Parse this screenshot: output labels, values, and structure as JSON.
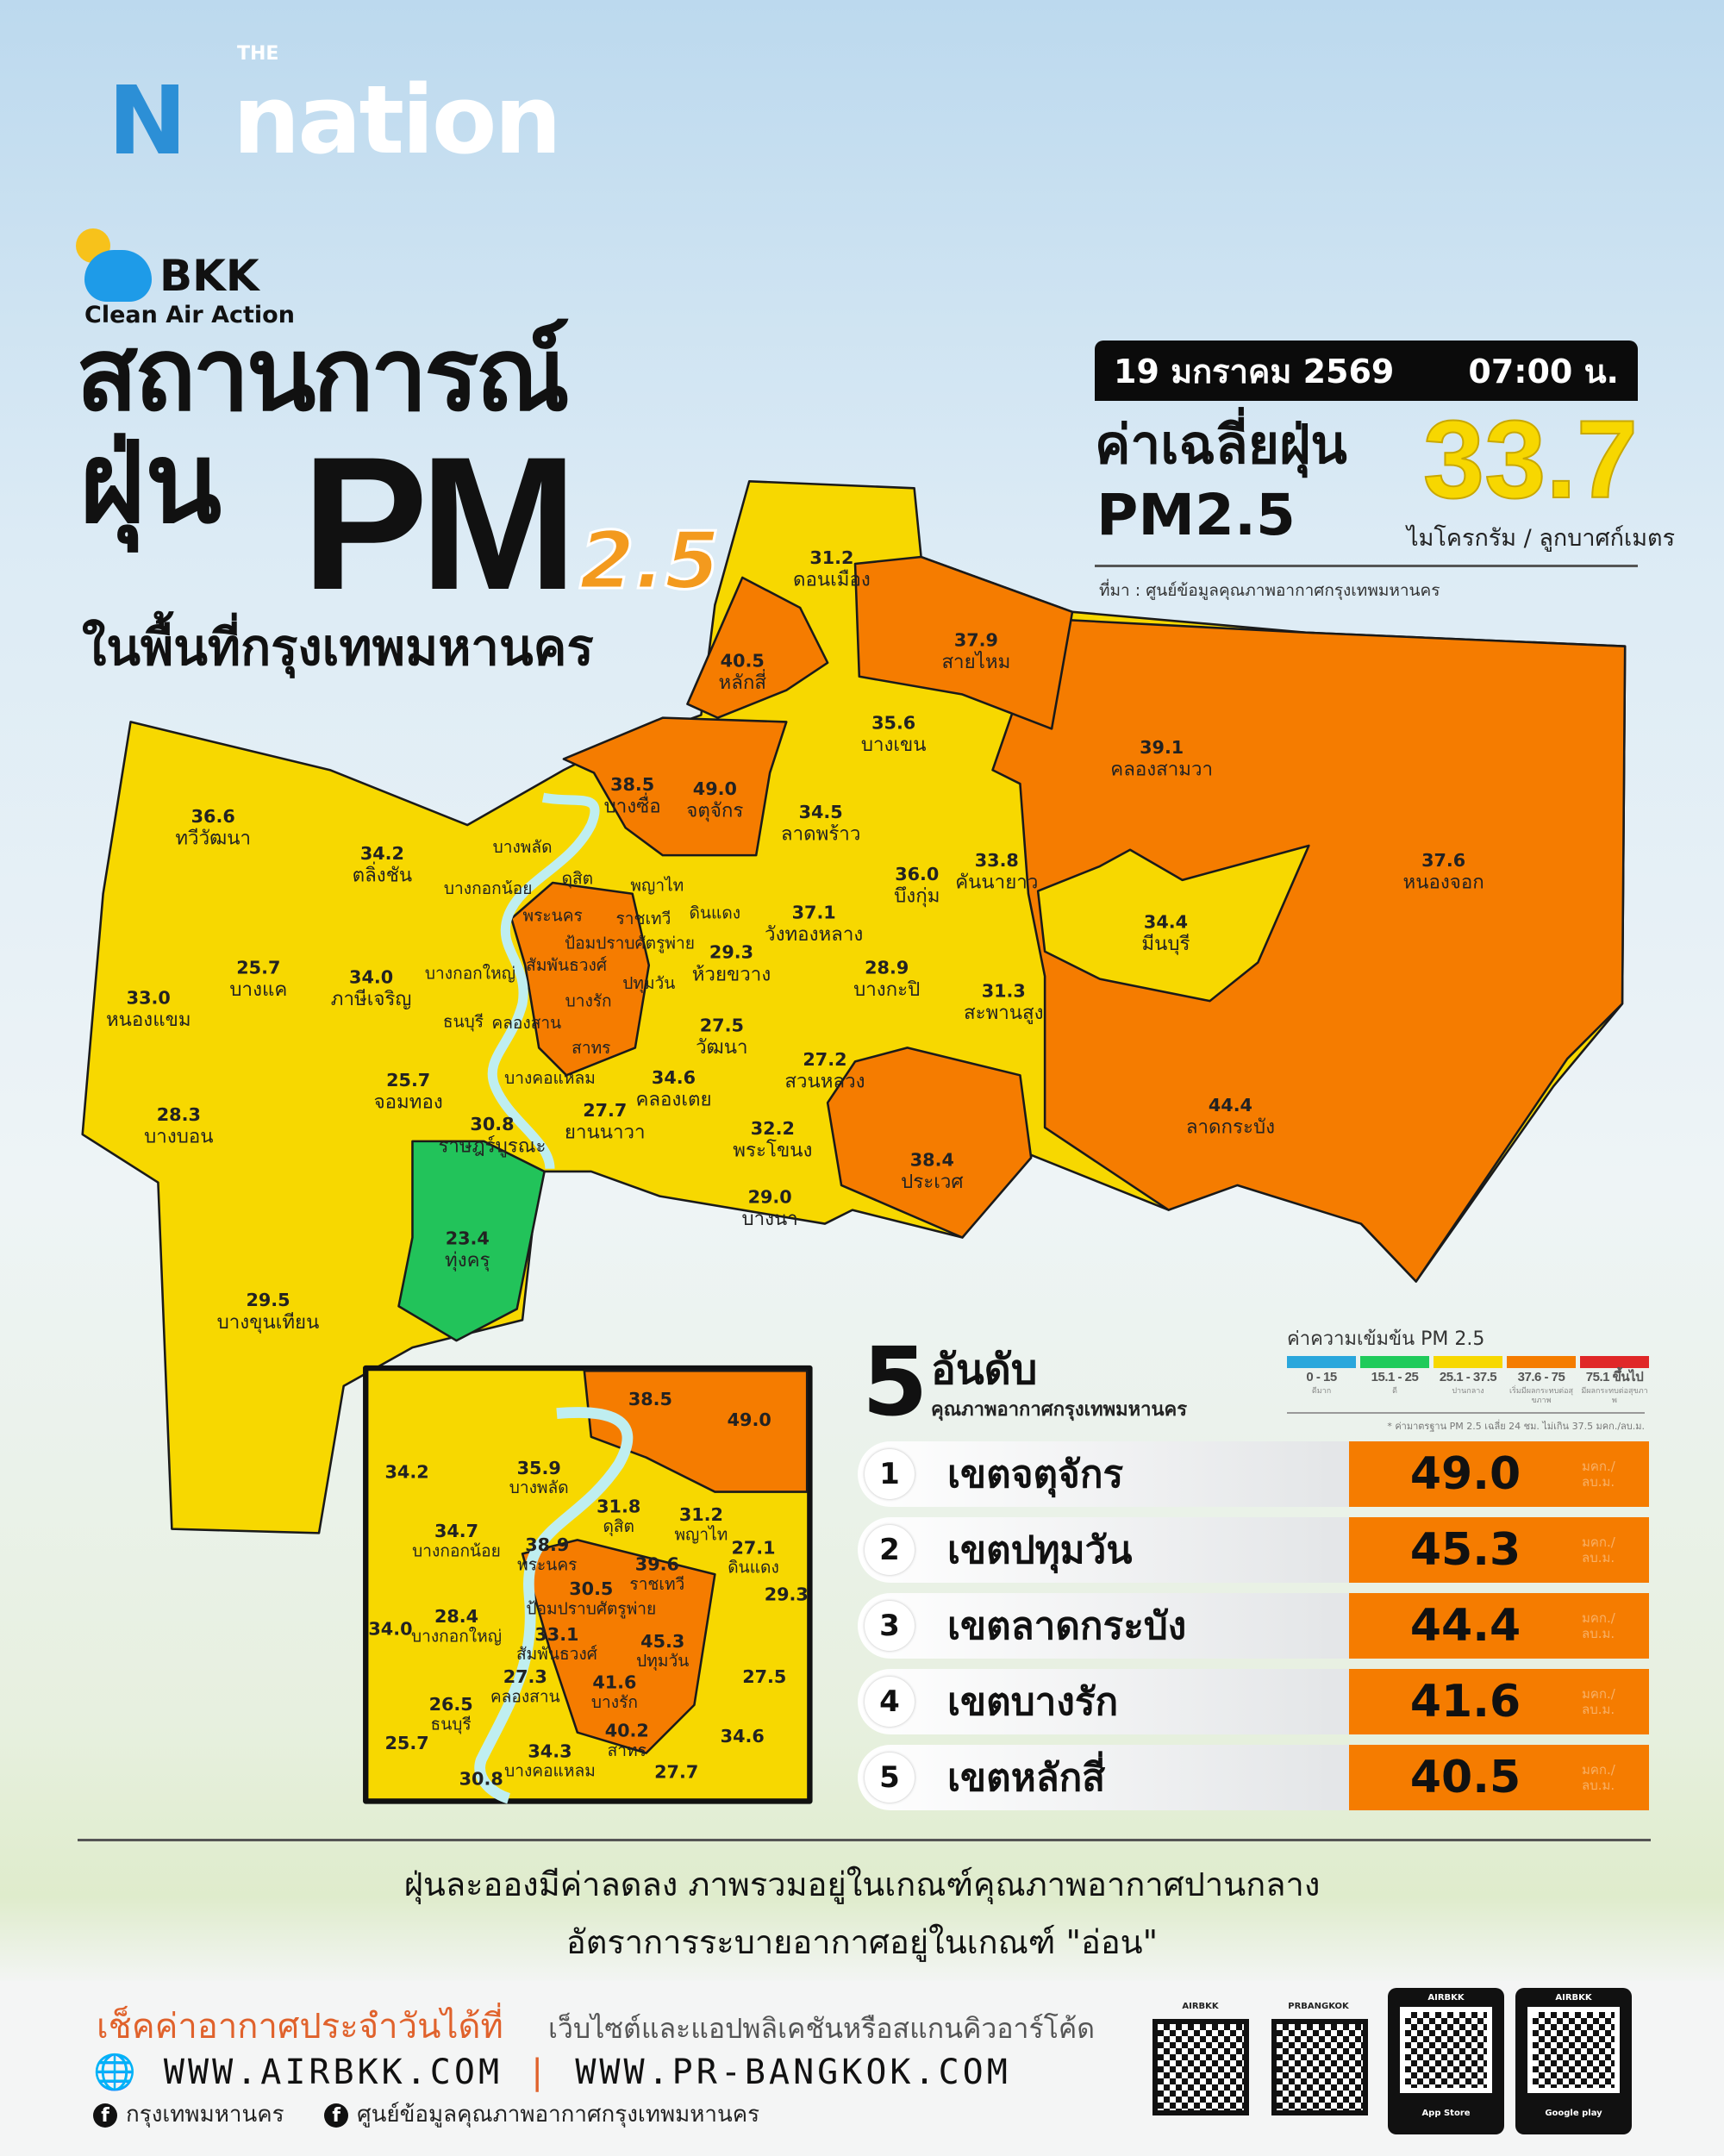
{
  "brand": {
    "the": "THE",
    "nation": "nation",
    "n_mark": "N"
  },
  "bkk": {
    "title": "BKK",
    "subtitle": "Clean Air Action"
  },
  "title": {
    "line1": "สถานการณ์",
    "line2": "ฝุ่น",
    "pm": "PM",
    "sub": "2.5",
    "line3": "ในพื้นที่กรุงเทพมหานคร"
  },
  "header": {
    "date": "19 มกราคม 2569",
    "time": "07:00 น.",
    "avg_label_1": "ค่าเฉลี่ยฝุ่น",
    "avg_label_2": "PM2.5",
    "avg_value": "33.7",
    "unit": "ไมโครกรัม / ลูกบาศก์เมตร",
    "source": "ที่มา : ศูนย์ข้อมูลคุณภาพอากาศกรุงเทพมหานคร"
  },
  "colors": {
    "very_good": "#2aa7dc",
    "good": "#1fcb5a",
    "moderate": "#f7d800",
    "unhealthy_start": "#f57c00",
    "unhealthy": "#e02828"
  },
  "districts": [
    {
      "name": "ดอนเมือง",
      "value": "31.2"
    },
    {
      "name": "หลักสี่",
      "value": "40.5"
    },
    {
      "name": "สายไหม",
      "value": "37.9"
    },
    {
      "name": "บางเขน",
      "value": "35.6"
    },
    {
      "name": "คลองสามวา",
      "value": "39.1"
    },
    {
      "name": "หนองจอก",
      "value": "37.6"
    },
    {
      "name": "บางซื่อ",
      "value": "38.5"
    },
    {
      "name": "จตุจักร",
      "value": "49.0"
    },
    {
      "name": "ลาดพร้าว",
      "value": "34.5"
    },
    {
      "name": "บึงกุ่ม",
      "value": "36.0"
    },
    {
      "name": "คันนายาว",
      "value": "33.8"
    },
    {
      "name": "มีนบุรี",
      "value": "34.4"
    },
    {
      "name": "ทวีวัฒนา",
      "value": "36.6"
    },
    {
      "name": "ตลิ่งชัน",
      "value": "34.2"
    },
    {
      "name": "บางแค",
      "value": "25.7"
    },
    {
      "name": "ภาษีเจริญ",
      "value": "34.0"
    },
    {
      "name": "หนองแขม",
      "value": "33.0"
    },
    {
      "name": "วังทองหลาง",
      "value": "37.1"
    },
    {
      "name": "ห้วยขวาง",
      "value": "29.3"
    },
    {
      "name": "บางกะปิ",
      "value": "28.9"
    },
    {
      "name": "สะพานสูง",
      "value": "31.3"
    },
    {
      "name": "วัฒนา",
      "value": "27.5"
    },
    {
      "name": "สวนหลวง",
      "value": "27.2"
    },
    {
      "name": "คลองเตย",
      "value": "34.6"
    },
    {
      "name": "จอมทอง",
      "value": "25.7"
    },
    {
      "name": "บางบอน",
      "value": "28.3"
    },
    {
      "name": "ราษฎร์บูรณะ",
      "value": "30.8"
    },
    {
      "name": "ยานนาวา",
      "value": "27.7"
    },
    {
      "name": "พระโขนง",
      "value": "32.2"
    },
    {
      "name": "ประเวศ",
      "value": "38.4"
    },
    {
      "name": "ลาดกระบัง",
      "value": "44.4"
    },
    {
      "name": "บางนา",
      "value": "29.0"
    },
    {
      "name": "ทุ่งครุ",
      "value": "23.4"
    },
    {
      "name": "บางขุนเทียน",
      "value": "29.5"
    }
  ],
  "central_names": [
    "บางพลัด",
    "บางกอกน้อย",
    "ดุสิต",
    "พญาไท",
    "ราชเทวี",
    "ดินแดง",
    "พระนคร",
    "ป้อมปราบศัตรูพ่าย",
    "สัมพันธวงศ์",
    "ปทุมวัน",
    "บางกอกใหญ่",
    "บางรัก",
    "ธนบุรี",
    "คลองสาน",
    "สาทร",
    "บางคอแหลม"
  ],
  "inset": [
    {
      "name": "",
      "value": "38.5"
    },
    {
      "name": "",
      "value": "49.0"
    },
    {
      "name": "",
      "value": "34.2"
    },
    {
      "name": "บางพลัด",
      "value": "35.9"
    },
    {
      "name": "ดุสิต",
      "value": "31.8"
    },
    {
      "name": "พญาไท",
      "value": "31.2"
    },
    {
      "name": "บางกอกน้อย",
      "value": "34.7"
    },
    {
      "name": "ดินแดง",
      "value": "27.1"
    },
    {
      "name": "พระนคร",
      "value": "38.9"
    },
    {
      "name": "ราชเทวี",
      "value": "39.6"
    },
    {
      "name": "",
      "value": "29.3"
    },
    {
      "name": "ป้อมปราบศัตรูพ่าย",
      "value": "30.5"
    },
    {
      "name": "สัมพันธวงศ์",
      "value": "33.1"
    },
    {
      "name": "ปทุมวัน",
      "value": "45.3"
    },
    {
      "name": "",
      "value": "34.0"
    },
    {
      "name": "บางกอกใหญ่",
      "value": "28.4"
    },
    {
      "name": "บางรัก",
      "value": "41.6"
    },
    {
      "name": "",
      "value": "27.5"
    },
    {
      "name": "ธนบุรี",
      "value": "26.5"
    },
    {
      "name": "คลองสาน",
      "value": "27.3"
    },
    {
      "name": "สาทร",
      "value": "40.2"
    },
    {
      "name": "",
      "value": "34.6"
    },
    {
      "name": "",
      "value": "25.7"
    },
    {
      "name": "บางคอแหลม",
      "value": "34.3"
    },
    {
      "name": "",
      "value": "27.7"
    },
    {
      "name": "",
      "value": "30.8"
    }
  ],
  "legend": {
    "title": "ค่าความเข้มข้น  PM 2.5",
    "items": [
      {
        "range": "0 - 15",
        "label": "ดีมาก",
        "color": "#2aa7dc"
      },
      {
        "range": "15.1 - 25",
        "label": "ดี",
        "color": "#1fcb5a"
      },
      {
        "range": "25.1 - 37.5",
        "label": "ปานกลาง",
        "color": "#f7d800"
      },
      {
        "range": "37.6 - 75",
        "label": "เริ่มมีผลกระทบต่อสุขภาพ",
        "color": "#f57c00"
      },
      {
        "range": "75.1 ขึ้นไป",
        "label": "มีผลกระทบต่อสุขภาพ",
        "color": "#e02828"
      }
    ],
    "note": "* ค่ามาตรฐาน PM 2.5 เฉลี่ย 24 ชม. ไม่เกิน 37.5 มคก./ลบ.ม."
  },
  "top5": {
    "number": "5",
    "title": "อันดับ",
    "subtitle": "คุณภาพอากาศกรุงเทพมหานคร",
    "unit": "มคก./ ลบ.ม.",
    "rows": [
      {
        "rank": "1",
        "name": "เขตจตุจักร",
        "value": "49.0"
      },
      {
        "rank": "2",
        "name": "เขตปทุมวัน",
        "value": "45.3"
      },
      {
        "rank": "3",
        "name": "เขตลาดกระบัง",
        "value": "44.4"
      },
      {
        "rank": "4",
        "name": "เขตบางรัก",
        "value": "41.6"
      },
      {
        "rank": "5",
        "name": "เขตหลักสี่",
        "value": "40.5"
      }
    ]
  },
  "summary": {
    "line1": "ฝุ่นละอองมีค่าลดลง ภาพรวมอยู่ในเกณฑ์คุณภาพอากาศปานกลาง",
    "line2": "อัตราการระบายอากาศอยู่ในเกณฑ์ \"อ่อน\""
  },
  "footer": {
    "check": "เช็คค่าอากาศประจำวันได้ที่",
    "check_sub": "เว็บไซต์และแอปพลิเคชันหรือสแกนคิวอาร์โค้ด",
    "web1": "WWW.AIRBKK.COM",
    "sep": "|",
    "web2": "WWW.PR-BANGKOK.COM",
    "fb1": "กรุงเทพมหานคร",
    "fb2": "ศูนย์ข้อมูลคุณภาพอากาศกรุงเทพมหานคร",
    "qr1": "AIRBKK",
    "qr2": "PRBANGKOK",
    "store1_label": "AIRBKK",
    "store1": "App Store",
    "store2_label": "AIRBKK",
    "store2": "Google play"
  }
}
